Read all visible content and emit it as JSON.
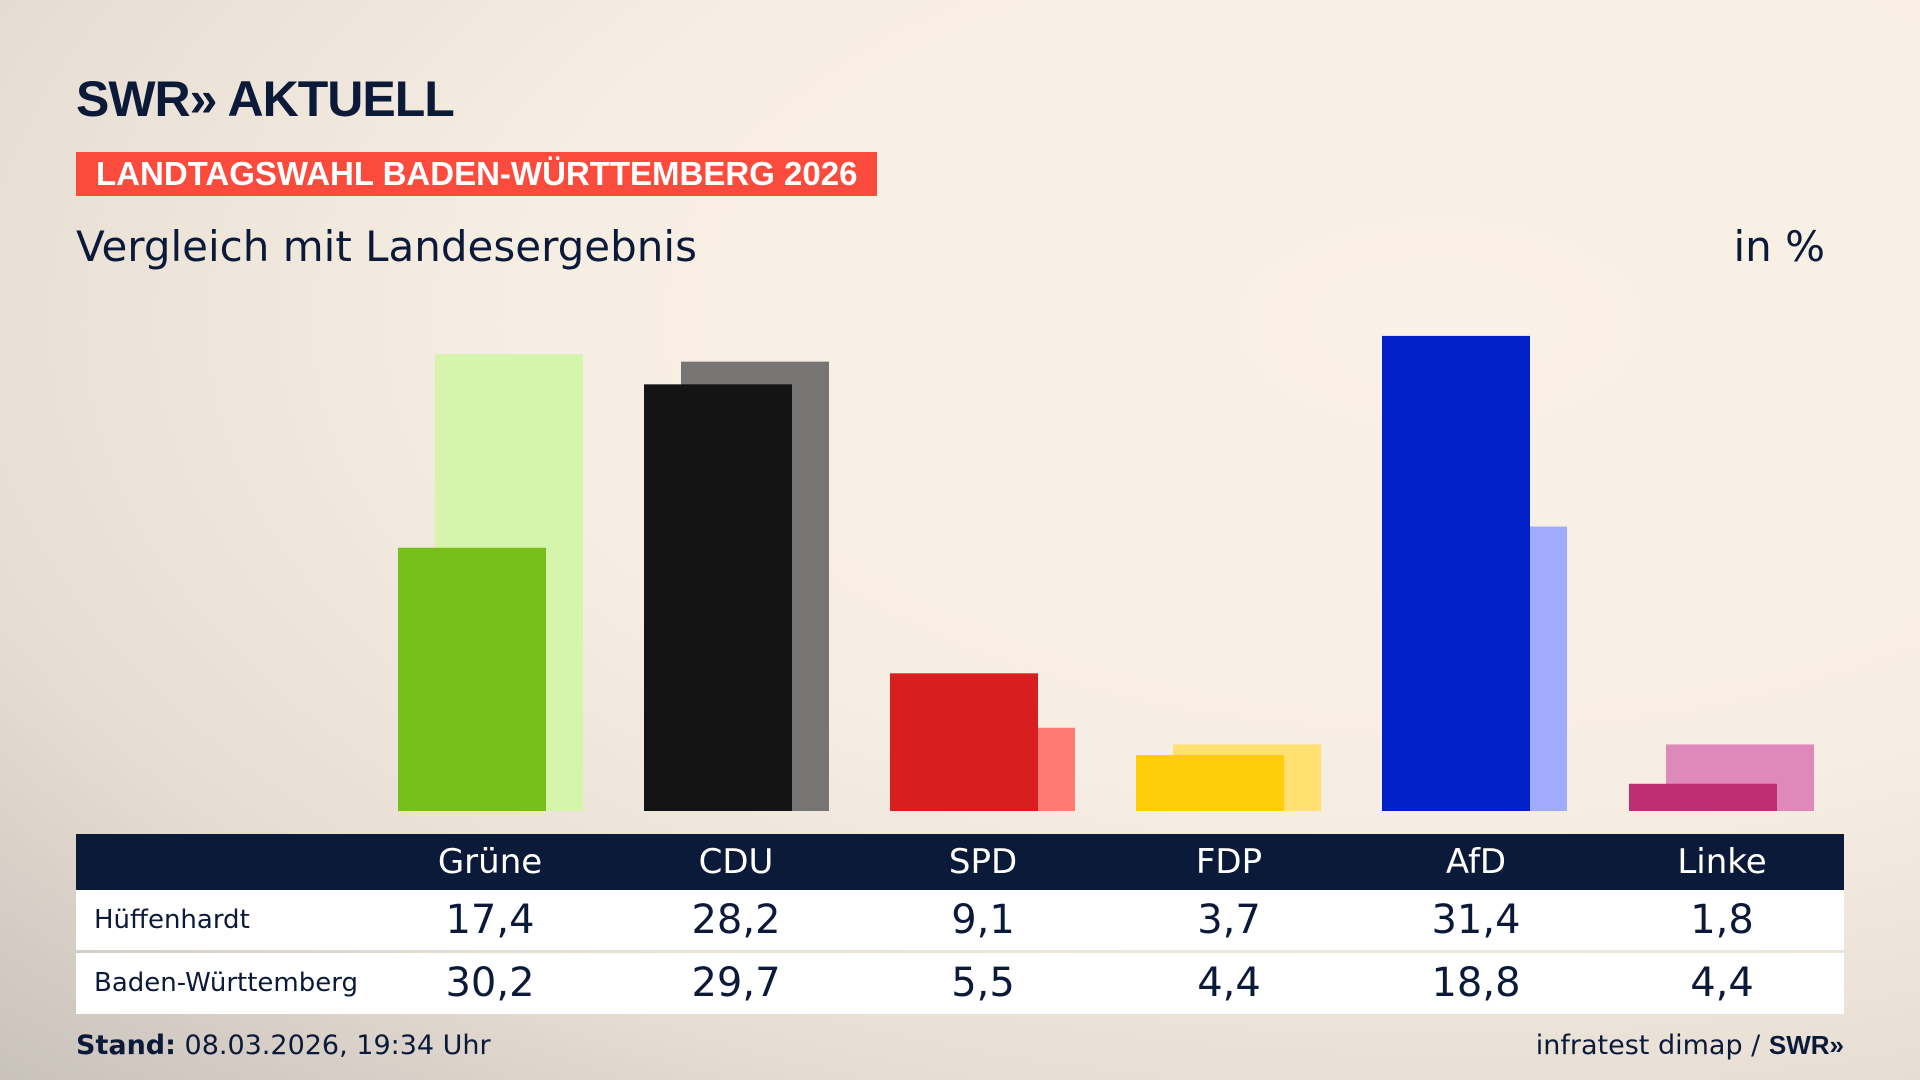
{
  "header": {
    "logo": "SWR» AKTUELL",
    "banner": "LANDTAGSWAHL BADEN-WÜRTTEMBERG 2026",
    "subtitle": "Vergleich mit Landesergebnis",
    "unit": "in %"
  },
  "chart_data": {
    "type": "bar",
    "categories": [
      "Grüne",
      "CDU",
      "SPD",
      "FDP",
      "AfD",
      "Linke"
    ],
    "series": [
      {
        "name": "Hüffenhardt",
        "values": [
          17.4,
          28.2,
          9.1,
          3.7,
          31.4,
          1.8
        ],
        "colors": [
          "#78be1a",
          "#141414",
          "#d71f1f",
          "#ffcd0a",
          "#0020c8",
          "#be2e73"
        ]
      },
      {
        "name": "Baden-Württemberg",
        "values": [
          30.2,
          29.7,
          5.5,
          4.4,
          18.8,
          4.4
        ],
        "colors": [
          "#d6f5ac",
          "#767574",
          "#ff7a72",
          "#ffe070",
          "#a0abff",
          "#df88ba"
        ]
      }
    ],
    "ylim": [
      0,
      33
    ],
    "grid": false
  },
  "table": {
    "headers": [
      "Grüne",
      "CDU",
      "SPD",
      "FDP",
      "AfD",
      "Linke"
    ],
    "rows": [
      {
        "label": "Hüffenhardt",
        "values": [
          "17,4",
          "28,2",
          "9,1",
          "3,7",
          "31,4",
          "1,8"
        ]
      },
      {
        "label": "Baden-Württemberg",
        "values": [
          "30,2",
          "29,7",
          "5,5",
          "4,4",
          "18,8",
          "4,4"
        ]
      }
    ]
  },
  "footer": {
    "stand_label": "Stand:",
    "stand_value": "08.03.2026, 19:34 Uhr",
    "source": "infratest dimap /",
    "source_logo": "SWR»"
  }
}
